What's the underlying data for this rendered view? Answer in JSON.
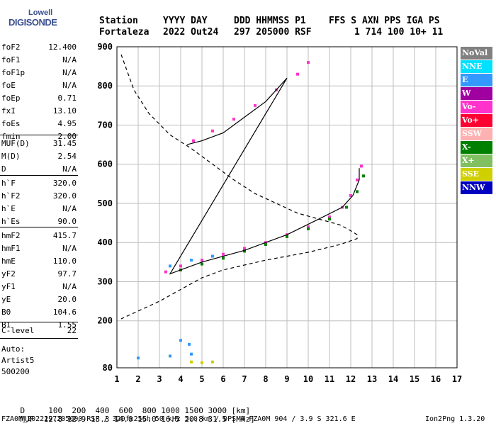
{
  "logo": {
    "top": "Lowell",
    "main": "DIGISONDE"
  },
  "header": {
    "line1": [
      "Station",
      "YYYY DAY",
      "DDD HHMMSS P1",
      "FFS S AXN PPS IGA PS"
    ],
    "line2": [
      "Fortaleza",
      "2022 Out24",
      "297 205000 RSF",
      "1 714 100 10+ 11"
    ]
  },
  "params": [
    {
      "name": "foF2",
      "value": "12.400"
    },
    {
      "name": "foF1",
      "value": "N/A"
    },
    {
      "name": "foF1p",
      "value": "N/A"
    },
    {
      "name": "foE",
      "value": "N/A"
    },
    {
      "name": "foEp",
      "value": "0.71"
    },
    {
      "name": "fxI",
      "value": "13.10"
    },
    {
      "name": "foEs",
      "value": "4.95"
    },
    {
      "name": "fmin",
      "value": "2.00"
    },
    {
      "name": "MUF(D)",
      "value": "31.45"
    },
    {
      "name": "M(D)",
      "value": "2.54"
    },
    {
      "name": "D",
      "value": "N/A"
    },
    {
      "name": "h`F",
      "value": "320.0"
    },
    {
      "name": "h`F2",
      "value": "320.0"
    },
    {
      "name": "h`E",
      "value": "N/A"
    },
    {
      "name": "h`Es",
      "value": "90.0"
    },
    {
      "name": "hmF2",
      "value": "415.7"
    },
    {
      "name": "hmF1",
      "value": "N/A"
    },
    {
      "name": "hmE",
      "value": "110.0"
    },
    {
      "name": "yF2",
      "value": "97.7"
    },
    {
      "name": "yF1",
      "value": "N/A"
    },
    {
      "name": "yE",
      "value": "20.0"
    },
    {
      "name": "B0",
      "value": "104.6"
    },
    {
      "name": "B1",
      "value": "1.55"
    },
    {
      "name": "C-level",
      "value": "22"
    }
  ],
  "autoscaling": {
    "label": "Auto:",
    "name": "Artist5",
    "code": "500200"
  },
  "legend": [
    {
      "label": "NoVal",
      "color": "#808080"
    },
    {
      "label": "NNE",
      "color": "#00e0ff"
    },
    {
      "label": "E",
      "color": "#3399ff"
    },
    {
      "label": "W",
      "color": "#a000a0"
    },
    {
      "label": "Vo-",
      "color": "#ff33cc"
    },
    {
      "label": "Vo+",
      "color": "#ff0033"
    },
    {
      "label": "SSW",
      "color": "#ffb0b0"
    },
    {
      "label": "X-",
      "color": "#008000"
    },
    {
      "label": "X+",
      "color": "#80c060"
    },
    {
      "label": "SSE",
      "color": "#d0d000"
    },
    {
      "label": "NNW",
      "color": "#0000c0"
    }
  ],
  "footer": {
    "d_label": "D",
    "d_values": [
      "100",
      "200",
      "400",
      "600",
      "800",
      "1000",
      "1500",
      "3000"
    ],
    "d_unit": "[km]",
    "muf_label": "MUF",
    "muf_values": [
      "12.8",
      "12.9",
      "13.3",
      "14.0",
      "15.0",
      "16.5",
      "20.8",
      "31.5"
    ],
    "muf_unit": "[MHz]",
    "info": "FZA0M_2022297205000.RSF / 320fx256h 50 kHz 5.0 km / DPS-4 FZA0M 904 / 3.9 S 321.6 E",
    "software": "Ion2Png 1.3.20"
  },
  "chart_data": {
    "type": "scatter",
    "xlim": [
      1,
      17
    ],
    "ylim": [
      80,
      900
    ],
    "xticks": [
      1,
      2,
      3,
      4,
      5,
      6,
      7,
      8,
      9,
      10,
      11,
      12,
      13,
      14,
      15,
      16,
      17
    ],
    "yticks": [
      80,
      200,
      300,
      400,
      500,
      600,
      700,
      800,
      900
    ],
    "grid": true,
    "legend_position": "right",
    "series": [
      {
        "name": "Vo-",
        "points": [
          [
            3.3,
            325
          ],
          [
            4.0,
            340
          ],
          [
            5.0,
            355
          ],
          [
            6.0,
            370
          ],
          [
            7.0,
            385
          ],
          [
            8.0,
            400
          ],
          [
            9.0,
            420
          ],
          [
            10.0,
            440
          ],
          [
            11.0,
            465
          ],
          [
            11.6,
            490
          ],
          [
            12.0,
            520
          ],
          [
            12.3,
            560
          ],
          [
            12.5,
            595
          ],
          [
            4.6,
            660
          ],
          [
            5.5,
            685
          ],
          [
            6.5,
            715
          ],
          [
            7.5,
            750
          ],
          [
            8.5,
            790
          ],
          [
            9.5,
            830
          ],
          [
            10.0,
            860
          ]
        ]
      },
      {
        "name": "X-",
        "points": [
          [
            4.0,
            330
          ],
          [
            5.0,
            345
          ],
          [
            6.0,
            360
          ],
          [
            7.0,
            378
          ],
          [
            8.0,
            395
          ],
          [
            9.0,
            415
          ],
          [
            10.0,
            435
          ],
          [
            11.0,
            460
          ],
          [
            11.8,
            490
          ],
          [
            12.3,
            530
          ],
          [
            12.6,
            570
          ]
        ]
      },
      {
        "name": "E",
        "points": [
          [
            3.5,
            340
          ],
          [
            4.5,
            355
          ],
          [
            5.5,
            365
          ],
          [
            2.0,
            105
          ],
          [
            3.5,
            110
          ],
          [
            4.0,
            150
          ],
          [
            4.4,
            140
          ],
          [
            4.5,
            115
          ]
        ]
      },
      {
        "name": "SSE",
        "points": [
          [
            4.5,
            95
          ],
          [
            5.0,
            93
          ],
          [
            5.5,
            95
          ]
        ]
      }
    ],
    "lines": [
      {
        "name": "O-trace profile",
        "points": [
          [
            1.2,
            880
          ],
          [
            1.8,
            790
          ],
          [
            2.5,
            730
          ],
          [
            3.5,
            675
          ],
          [
            4.5,
            640
          ],
          [
            5.5,
            600
          ],
          [
            6.5,
            560
          ],
          [
            7.5,
            525
          ],
          [
            8.5,
            500
          ],
          [
            9.5,
            475
          ],
          [
            10.5,
            460
          ],
          [
            11.5,
            445
          ],
          [
            12.0,
            430
          ],
          [
            12.3,
            420
          ],
          [
            12.3,
            410
          ],
          [
            11.5,
            395
          ],
          [
            10.0,
            375
          ],
          [
            8.0,
            355
          ],
          [
            6.0,
            330
          ],
          [
            5.0,
            310
          ],
          [
            4.0,
            280
          ],
          [
            3.0,
            250
          ],
          [
            2.0,
            225
          ],
          [
            1.2,
            205
          ]
        ]
      },
      {
        "name": "Model trace",
        "points": [
          [
            4.3,
            650
          ],
          [
            5,
            660
          ],
          [
            6,
            680
          ],
          [
            7,
            720
          ],
          [
            8,
            760
          ],
          [
            9,
            820
          ],
          [
            3.5,
            320
          ],
          [
            5,
            350
          ],
          [
            7,
            380
          ],
          [
            9,
            420
          ],
          [
            10.5,
            460
          ],
          [
            11.6,
            490
          ],
          [
            12.1,
            520
          ],
          [
            12.4,
            560
          ],
          [
            12.4,
            590
          ]
        ]
      }
    ]
  }
}
